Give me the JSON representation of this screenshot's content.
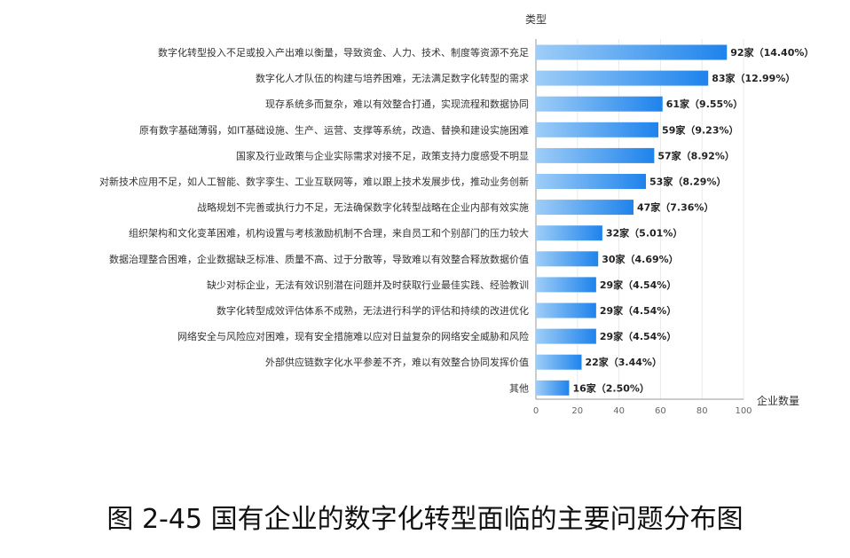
{
  "figure_caption": "图 2-45 国有企业的数字化转型面临的主要问题分布图",
  "colors": {
    "bar_start": "#9ecdf7",
    "bar_end": "#1e83ec",
    "grid": "#e9e9e9",
    "axis": "#999999"
  },
  "chart_data": {
    "type": "bar",
    "orientation": "horizontal",
    "ylabel": "类型",
    "xlabel": "企业数量",
    "xlim": [
      0,
      100
    ],
    "xticks": [
      0,
      20,
      40,
      60,
      80,
      100
    ],
    "grid": true,
    "categories": [
      "数字化转型投入不足或投入产出难以衡量，导致资金、人力、技术、制度等资源不充足",
      "数字化人才队伍的构建与培养困难，无法满足数字化转型的需求",
      "现存系统多而复杂，难以有效整合打通，实现流程和数据协同",
      "原有数字基础薄弱，如IT基础设施、生产、运营、支撑等系统，改造、替换和建设实施困难",
      "国家及行业政策与企业实际需求对接不足，政策支持力度感受不明显",
      "对新技术应用不足，如人工智能、数字孪生、工业互联网等，难以跟上技术发展步伐，推动业务创新",
      "战略规划不完善或执行力不足，无法确保数字化转型战略在企业内部有效实施",
      "组织架构和文化变革困难，机构设置与考核激励机制不合理，来自员工和个别部门的压力较大",
      "数据治理整合困难，企业数据缺乏标准、质量不高、过于分散等，导致难以有效整合释放数据价值",
      "缺少对标企业，无法有效识别潜在问题并及时获取行业最佳实践、经验教训",
      "数字化转型成效评估体系不成熟，无法进行科学的评估和持续的改进优化",
      "网络安全与风险应对困难，现有安全措施难以应对日益复杂的网络安全威胁和风险",
      "外部供应链数字化水平参差不齐，难以有效整合协同发挥价值",
      "其他"
    ],
    "values": [
      92,
      83,
      61,
      59,
      57,
      53,
      47,
      32,
      30,
      29,
      29,
      29,
      22,
      16
    ],
    "data_labels": [
      "92家（14.40%）",
      "83家（12.99%）",
      "61家（9.55%）",
      "59家（9.23%）",
      "57家（8.92%）",
      "53家（8.29%）",
      "47家（7.36%）",
      "32家（5.01%）",
      "30家（4.69%）",
      "29家（4.54%）",
      "29家（4.54%）",
      "29家（4.54%）",
      "22家（3.44%）",
      "16家（2.50%）"
    ]
  }
}
